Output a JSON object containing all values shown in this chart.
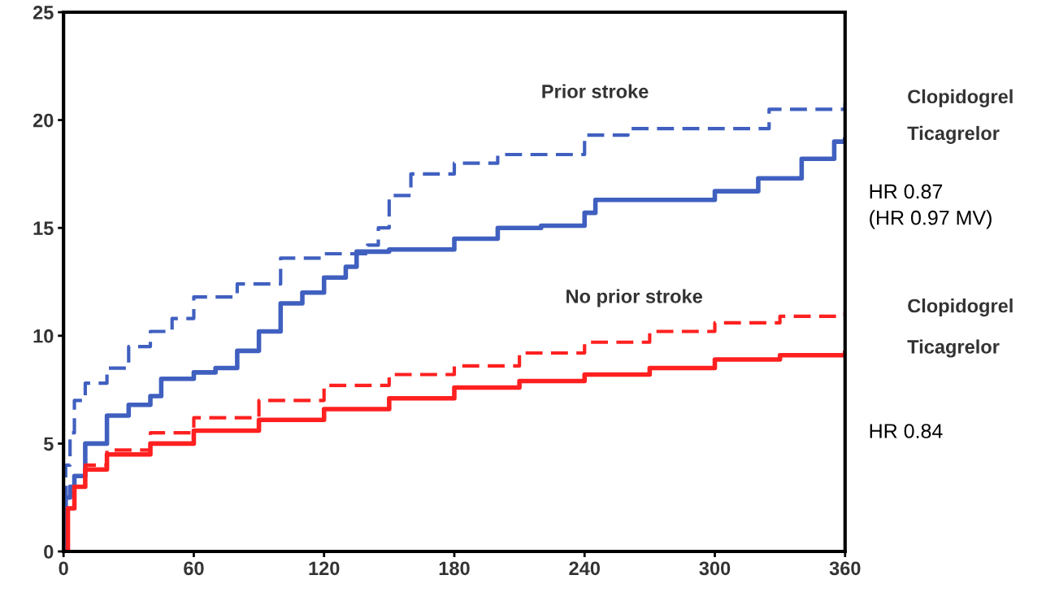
{
  "chart_data": {
    "type": "step",
    "xlim": [
      0,
      360
    ],
    "ylim": [
      0,
      25
    ],
    "xticks": [
      0,
      60,
      120,
      180,
      240,
      300,
      360
    ],
    "yticks": [
      0,
      5,
      10,
      15,
      20,
      25
    ],
    "grid": false,
    "legend": false,
    "annotations": [
      "Prior stroke",
      "No prior stroke",
      "HR 0.87\n(HR 0.97 MV)",
      "HR 0.84"
    ],
    "series": [
      {
        "name": "Clopidogrel",
        "color": "#4060c0",
        "line_style": "dashed",
        "x": [
          0,
          1,
          3,
          5,
          10,
          20,
          30,
          40,
          50,
          60,
          80,
          100,
          120,
          140,
          145,
          150,
          160,
          180,
          200,
          240,
          260,
          320,
          325,
          345,
          360
        ],
        "values": [
          0,
          4,
          5.5,
          7,
          7.8,
          8.5,
          9.5,
          10.2,
          10.8,
          11.8,
          12.4,
          13.6,
          13.8,
          14.2,
          15,
          16.5,
          17.5,
          18,
          18.4,
          19.3,
          19.6,
          19.6,
          20.5,
          20.5,
          20.8
        ]
      },
      {
        "name": "Ticagrelor",
        "color": "#4060c0",
        "line_style": "solid",
        "x": [
          0,
          1,
          3,
          5,
          10,
          20,
          30,
          40,
          45,
          60,
          70,
          80,
          90,
          100,
          110,
          120,
          130,
          135,
          150,
          175,
          180,
          200,
          220,
          240,
          245,
          300,
          320,
          340,
          355,
          360
        ],
        "values": [
          0,
          2.5,
          3,
          3.5,
          5,
          6.3,
          6.8,
          7.2,
          8,
          8.3,
          8.5,
          9.3,
          10.2,
          11.5,
          12,
          12.7,
          13.2,
          13.9,
          14,
          14,
          14.5,
          15,
          15.1,
          15.7,
          16.3,
          16.7,
          17.3,
          18.2,
          19,
          19.1
        ]
      },
      {
        "name": "Clopidogrel",
        "color": "#ff2020",
        "line_style": "dashed",
        "x": [
          0,
          2,
          5,
          10,
          20,
          40,
          60,
          90,
          120,
          150,
          180,
          210,
          240,
          270,
          300,
          330,
          360
        ],
        "values": [
          0,
          2,
          3,
          4,
          4.7,
          5.5,
          6.2,
          7,
          7.7,
          8.2,
          8.6,
          9.2,
          9.7,
          10.2,
          10.6,
          10.9,
          11.1
        ]
      },
      {
        "name": "Ticagrelor",
        "color": "#ff2020",
        "line_style": "solid",
        "x": [
          0,
          2,
          5,
          10,
          20,
          40,
          60,
          90,
          120,
          150,
          180,
          210,
          240,
          270,
          300,
          330,
          360
        ],
        "values": [
          0,
          2,
          3,
          3.8,
          4.5,
          5,
          5.6,
          6.1,
          6.6,
          7.1,
          7.6,
          7.9,
          8.2,
          8.5,
          8.9,
          9.1,
          9.2
        ]
      }
    ]
  }
}
